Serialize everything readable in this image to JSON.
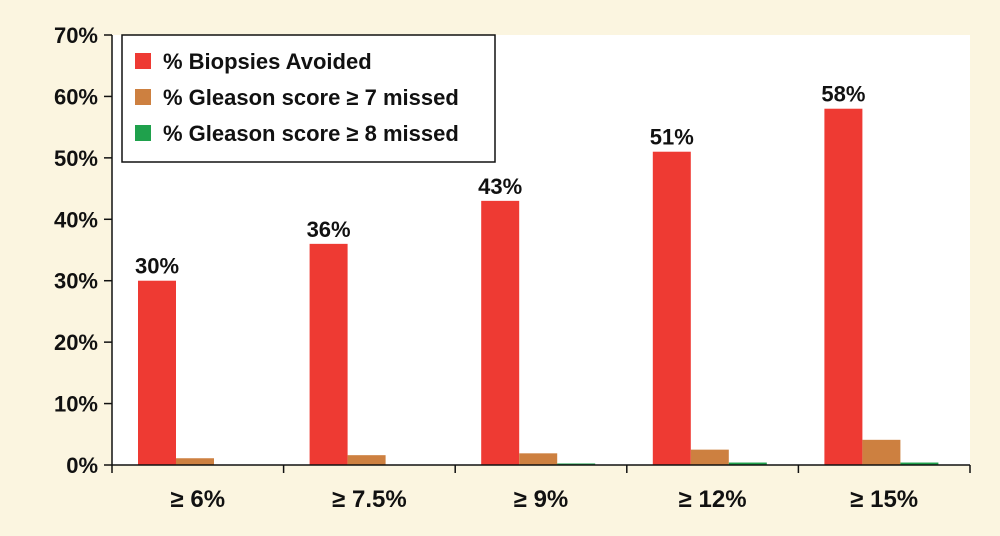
{
  "chart_data": {
    "type": "bar",
    "categories": [
      "≥ 6%",
      "≥ 7.5%",
      "≥ 9%",
      "≥ 12%",
      "≥ 15%"
    ],
    "series": [
      {
        "name": "% Biopsies Avoided",
        "color": "#EE3A33",
        "values": [
          30,
          36,
          43,
          51,
          58
        ]
      },
      {
        "name": "% Gleason score ≥ 7 missed",
        "color": "#CD8040",
        "values": [
          1.1,
          1.6,
          1.9,
          2.5,
          4.1
        ]
      },
      {
        "name": "% Gleason score ≥ 8 missed",
        "color": "#1FA14C",
        "values": [
          0,
          0,
          0.25,
          0.4,
          0.4
        ]
      }
    ],
    "data_labels": [
      "30%",
      "36%",
      "43%",
      "51%",
      "58%"
    ],
    "y_ticks": [
      "0%",
      "10%",
      "20%",
      "30%",
      "40%",
      "50%",
      "60%",
      "70%"
    ],
    "ylim": [
      0,
      70
    ],
    "legend_position": "top-left",
    "grid": false
  }
}
